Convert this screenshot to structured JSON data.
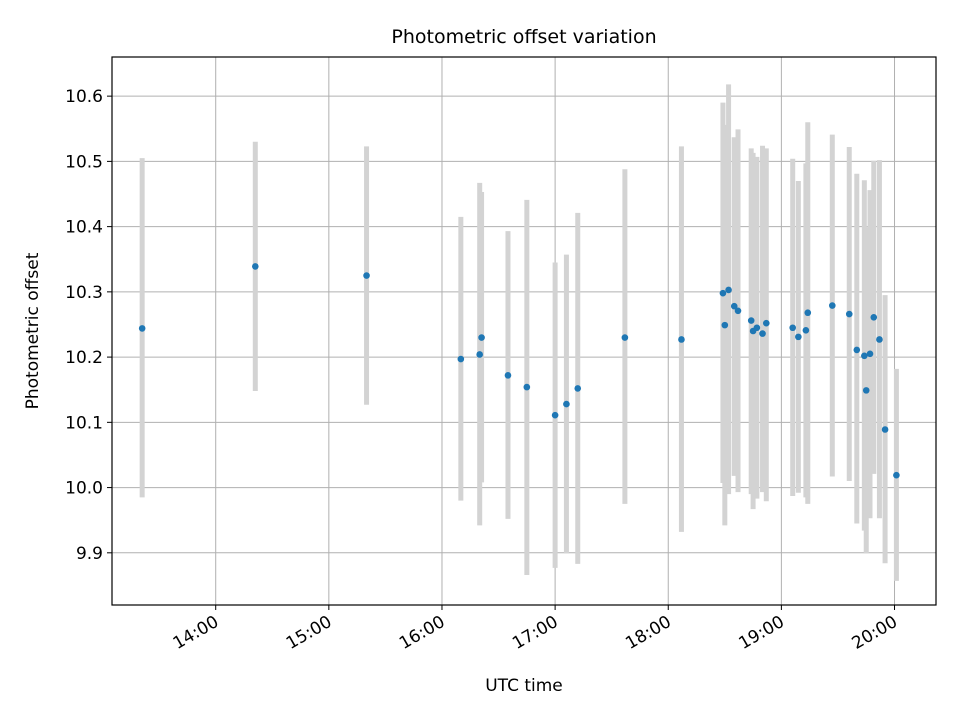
{
  "chart_data": {
    "type": "scatter",
    "title": "Photometric offset variation",
    "xlabel": "UTC time",
    "ylabel": "Photometric offset",
    "x_unit": "UTC time (HH:MM)",
    "xlim": [
      "13:05",
      "20:22"
    ],
    "ylim": [
      9.82,
      10.66
    ],
    "xticks": [
      "14:00",
      "15:00",
      "16:00",
      "17:00",
      "18:00",
      "19:00",
      "20:00"
    ],
    "yticks": [
      "9.9",
      "10.0",
      "10.1",
      "10.2",
      "10.3",
      "10.4",
      "10.5",
      "10.6"
    ],
    "grid": true,
    "colors": {
      "point": "#1f77b4",
      "errorbar": "#d3d3d3",
      "grid": "#b0b0b0"
    },
    "points": [
      {
        "x": "13:21",
        "y": 10.244,
        "ylow": 9.985,
        "yhigh": 10.505
      },
      {
        "x": "14:21",
        "y": 10.339,
        "ylow": 10.148,
        "yhigh": 10.53
      },
      {
        "x": "15:20",
        "y": 10.325,
        "ylow": 10.127,
        "yhigh": 10.523
      },
      {
        "x": "16:10",
        "y": 10.197,
        "ylow": 9.98,
        "yhigh": 10.415
      },
      {
        "x": "16:20",
        "y": 10.204,
        "ylow": 9.942,
        "yhigh": 10.467
      },
      {
        "x": "16:21",
        "y": 10.23,
        "ylow": 10.008,
        "yhigh": 10.453
      },
      {
        "x": "16:35",
        "y": 10.172,
        "ylow": 9.952,
        "yhigh": 10.393
      },
      {
        "x": "16:45",
        "y": 10.154,
        "ylow": 9.866,
        "yhigh": 10.441
      },
      {
        "x": "17:00",
        "y": 10.111,
        "ylow": 9.877,
        "yhigh": 10.345
      },
      {
        "x": "17:06",
        "y": 10.128,
        "ylow": 9.899,
        "yhigh": 10.357
      },
      {
        "x": "17:12",
        "y": 10.152,
        "ylow": 9.883,
        "yhigh": 10.421
      },
      {
        "x": "17:37",
        "y": 10.23,
        "ylow": 9.975,
        "yhigh": 10.488
      },
      {
        "x": "18:07",
        "y": 10.227,
        "ylow": 9.932,
        "yhigh": 10.523
      },
      {
        "x": "18:29",
        "y": 10.298,
        "ylow": 10.007,
        "yhigh": 10.59
      },
      {
        "x": "18:30",
        "y": 10.249,
        "ylow": 9.942,
        "yhigh": 10.556
      },
      {
        "x": "18:32",
        "y": 10.303,
        "ylow": 9.99,
        "yhigh": 10.618
      },
      {
        "x": "18:35",
        "y": 10.278,
        "ylow": 10.018,
        "yhigh": 10.537
      },
      {
        "x": "18:37",
        "y": 10.271,
        "ylow": 9.993,
        "yhigh": 10.549
      },
      {
        "x": "18:44",
        "y": 10.256,
        "ylow": 9.99,
        "yhigh": 10.52
      },
      {
        "x": "18:45",
        "y": 10.24,
        "ylow": 9.967,
        "yhigh": 10.513
      },
      {
        "x": "18:47",
        "y": 10.245,
        "ylow": 9.983,
        "yhigh": 10.507
      },
      {
        "x": "18:50",
        "y": 10.236,
        "ylow": 9.993,
        "yhigh": 10.524
      },
      {
        "x": "18:52",
        "y": 10.252,
        "ylow": 9.979,
        "yhigh": 10.52
      },
      {
        "x": "19:06",
        "y": 10.245,
        "ylow": 9.987,
        "yhigh": 10.504
      },
      {
        "x": "19:09",
        "y": 10.231,
        "ylow": 9.992,
        "yhigh": 10.47
      },
      {
        "x": "19:13",
        "y": 10.241,
        "ylow": 9.985,
        "yhigh": 10.497
      },
      {
        "x": "19:14",
        "y": 10.268,
        "ylow": 9.975,
        "yhigh": 10.56
      },
      {
        "x": "19:27",
        "y": 10.279,
        "ylow": 10.017,
        "yhigh": 10.541
      },
      {
        "x": "19:36",
        "y": 10.266,
        "ylow": 10.01,
        "yhigh": 10.522
      },
      {
        "x": "19:40",
        "y": 10.211,
        "ylow": 9.945,
        "yhigh": 10.481
      },
      {
        "x": "19:44",
        "y": 10.202,
        "ylow": 9.934,
        "yhigh": 10.471
      },
      {
        "x": "19:45",
        "y": 10.149,
        "ylow": 9.899,
        "yhigh": 10.399
      },
      {
        "x": "19:47",
        "y": 10.205,
        "ylow": 9.953,
        "yhigh": 10.456
      },
      {
        "x": "19:49",
        "y": 10.261,
        "ylow": 10.021,
        "yhigh": 10.501
      },
      {
        "x": "19:52",
        "y": 10.227,
        "ylow": 9.953,
        "yhigh": 10.502
      },
      {
        "x": "19:55",
        "y": 10.089,
        "ylow": 9.884,
        "yhigh": 10.295
      },
      {
        "x": "20:01",
        "y": 10.019,
        "ylow": 9.857,
        "yhigh": 10.182
      }
    ]
  }
}
